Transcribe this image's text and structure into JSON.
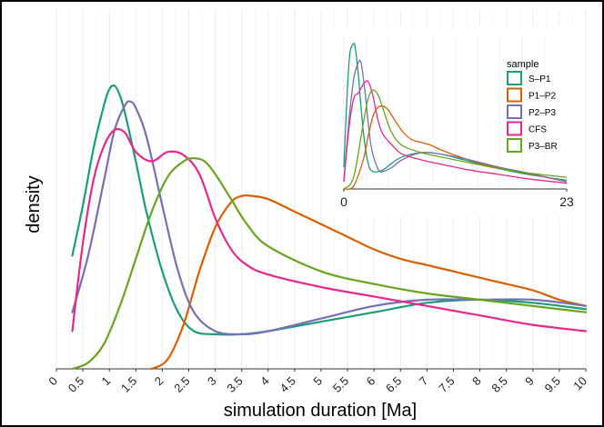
{
  "chart_data": [
    {
      "type": "line",
      "title": "",
      "xlabel": "simulation duration [Ma]",
      "ylabel": "density",
      "xlim": [
        0,
        10
      ],
      "x_ticks": [
        0,
        0.5,
        1,
        1.5,
        2,
        2.5,
        3,
        3.5,
        4,
        4.5,
        5,
        5.5,
        6,
        6.5,
        7,
        7.5,
        8,
        8.5,
        9,
        9.5,
        10
      ],
      "x_tick_labels": [
        "0",
        "0.5",
        "1",
        "1.5",
        "2",
        "2.5",
        "3",
        "3.5",
        "4",
        "4.5",
        "5",
        "5.5",
        "6",
        "6.5",
        "7",
        "7.5",
        "8",
        "8.5",
        "9",
        "9.5",
        "10"
      ],
      "ylim": [
        0,
        1
      ],
      "grid": "vertical",
      "series": [
        {
          "name": "S–P1",
          "color": "#1b9e77",
          "x": [
            0.3,
            0.5,
            0.7,
            0.9,
            1.0,
            1.1,
            1.2,
            1.3,
            1.5,
            1.7,
            2.0,
            2.3,
            2.6,
            3.0,
            3.5,
            4.0,
            5.0,
            6.0,
            7.0,
            8.0,
            9.0,
            10.0
          ],
          "y": [
            0.36,
            0.52,
            0.7,
            0.84,
            0.89,
            0.9,
            0.87,
            0.81,
            0.66,
            0.5,
            0.31,
            0.18,
            0.12,
            0.11,
            0.11,
            0.12,
            0.15,
            0.18,
            0.21,
            0.22,
            0.21,
            0.19
          ]
        },
        {
          "name": "P1–P2",
          "color": "#d95f02",
          "x": [
            1.8,
            2.1,
            2.4,
            2.7,
            3.0,
            3.3,
            3.5,
            3.7,
            4.0,
            4.5,
            5.0,
            5.5,
            6.0,
            6.5,
            7.0,
            7.5,
            8.0,
            8.5,
            9.0,
            9.5,
            10.0
          ],
          "y": [
            0.0,
            0.03,
            0.14,
            0.31,
            0.45,
            0.53,
            0.55,
            0.55,
            0.54,
            0.5,
            0.46,
            0.42,
            0.38,
            0.35,
            0.33,
            0.31,
            0.29,
            0.27,
            0.25,
            0.22,
            0.2
          ]
        },
        {
          "name": "P2–P3",
          "color": "#7570b3",
          "x": [
            0.3,
            0.6,
            0.9,
            1.1,
            1.3,
            1.4,
            1.5,
            1.7,
            2.0,
            2.3,
            2.6,
            3.0,
            3.5,
            4.0,
            5.0,
            6.0,
            7.0,
            8.0,
            9.0,
            10.0
          ],
          "y": [
            0.18,
            0.36,
            0.6,
            0.76,
            0.84,
            0.85,
            0.83,
            0.74,
            0.52,
            0.31,
            0.18,
            0.12,
            0.11,
            0.12,
            0.16,
            0.2,
            0.22,
            0.22,
            0.22,
            0.2
          ]
        },
        {
          "name": "CFS",
          "color": "#e7298a",
          "x": [
            0.3,
            0.5,
            0.7,
            0.9,
            1.1,
            1.3,
            1.5,
            1.8,
            2.1,
            2.4,
            2.7,
            3.0,
            3.3,
            3.6,
            4.0,
            5.0,
            6.0,
            7.0,
            8.0,
            9.0,
            10.0
          ],
          "y": [
            0.12,
            0.4,
            0.6,
            0.71,
            0.76,
            0.75,
            0.69,
            0.66,
            0.69,
            0.68,
            0.62,
            0.48,
            0.38,
            0.33,
            0.3,
            0.26,
            0.23,
            0.2,
            0.17,
            0.14,
            0.12
          ]
        },
        {
          "name": "P3–BR",
          "color": "#66a61e",
          "x": [
            0.3,
            0.6,
            0.9,
            1.2,
            1.5,
            1.8,
            2.1,
            2.4,
            2.6,
            2.8,
            3.0,
            3.3,
            3.6,
            4.0,
            5.0,
            6.0,
            7.0,
            8.0,
            9.0,
            10.0
          ],
          "y": [
            0.0,
            0.02,
            0.08,
            0.2,
            0.35,
            0.5,
            0.61,
            0.66,
            0.67,
            0.66,
            0.62,
            0.54,
            0.46,
            0.39,
            0.31,
            0.27,
            0.24,
            0.22,
            0.2,
            0.18
          ]
        }
      ]
    },
    {
      "type": "line",
      "title": "",
      "xlim": [
        0,
        23
      ],
      "x_ticks": [
        0,
        23
      ],
      "x_tick_labels": [
        "0",
        "23"
      ],
      "ylim": [
        0,
        1
      ],
      "grid": "vertical",
      "legend_title": "sample",
      "legend_position": "right",
      "series": [
        {
          "name": "S–P1",
          "color": "#1b9e77",
          "x": [
            0,
            0.3,
            0.6,
            1.0,
            1.2,
            1.5,
            2.0,
            2.5,
            3.0,
            4.0,
            5.0,
            6.0,
            8.0,
            10.0,
            13.0,
            16.0,
            19.0,
            23.0
          ],
          "y": [
            0.15,
            0.6,
            0.92,
            1.0,
            0.96,
            0.78,
            0.4,
            0.18,
            0.12,
            0.13,
            0.18,
            0.22,
            0.25,
            0.24,
            0.19,
            0.14,
            0.1,
            0.06
          ]
        },
        {
          "name": "P1–P2",
          "color": "#d95f02",
          "x": [
            0,
            1.0,
            2.0,
            2.5,
            3.0,
            3.5,
            4.0,
            4.5,
            5.0,
            6.0,
            7.0,
            8.0,
            9.0,
            10.0,
            12.0,
            15.0,
            18.0,
            23.0
          ],
          "y": [
            0.0,
            0.02,
            0.2,
            0.36,
            0.5,
            0.56,
            0.57,
            0.55,
            0.5,
            0.4,
            0.34,
            0.32,
            0.3,
            0.27,
            0.22,
            0.16,
            0.12,
            0.05
          ]
        },
        {
          "name": "P2–P3",
          "color": "#7570b3",
          "x": [
            0,
            0.5,
            1.0,
            1.5,
            1.8,
            2.2,
            2.8,
            3.5,
            4.0,
            5.0,
            6.0,
            8.0,
            10.0,
            13.0,
            16.0,
            19.0,
            23.0
          ],
          "y": [
            0.06,
            0.45,
            0.75,
            0.87,
            0.86,
            0.66,
            0.3,
            0.14,
            0.12,
            0.15,
            0.2,
            0.25,
            0.24,
            0.2,
            0.15,
            0.11,
            0.05
          ]
        },
        {
          "name": "CFS",
          "color": "#e7298a",
          "x": [
            0,
            0.5,
            1.0,
            1.5,
            2.0,
            2.5,
            3.0,
            3.5,
            4.0,
            5.0,
            6.0,
            8.0,
            10.0,
            13.0,
            16.0,
            19.0,
            23.0
          ],
          "y": [
            0.05,
            0.4,
            0.62,
            0.66,
            0.72,
            0.74,
            0.64,
            0.48,
            0.38,
            0.3,
            0.24,
            0.2,
            0.17,
            0.13,
            0.1,
            0.07,
            0.04
          ]
        },
        {
          "name": "P3–BR",
          "color": "#66a61e",
          "x": [
            0,
            1.0,
            2.0,
            2.5,
            3.0,
            3.5,
            4.0,
            4.5,
            5.0,
            6.0,
            8.0,
            10.0,
            13.0,
            16.0,
            19.0,
            23.0
          ],
          "y": [
            0.0,
            0.08,
            0.45,
            0.62,
            0.68,
            0.65,
            0.56,
            0.46,
            0.38,
            0.3,
            0.25,
            0.22,
            0.18,
            0.14,
            0.11,
            0.08
          ]
        }
      ]
    }
  ]
}
